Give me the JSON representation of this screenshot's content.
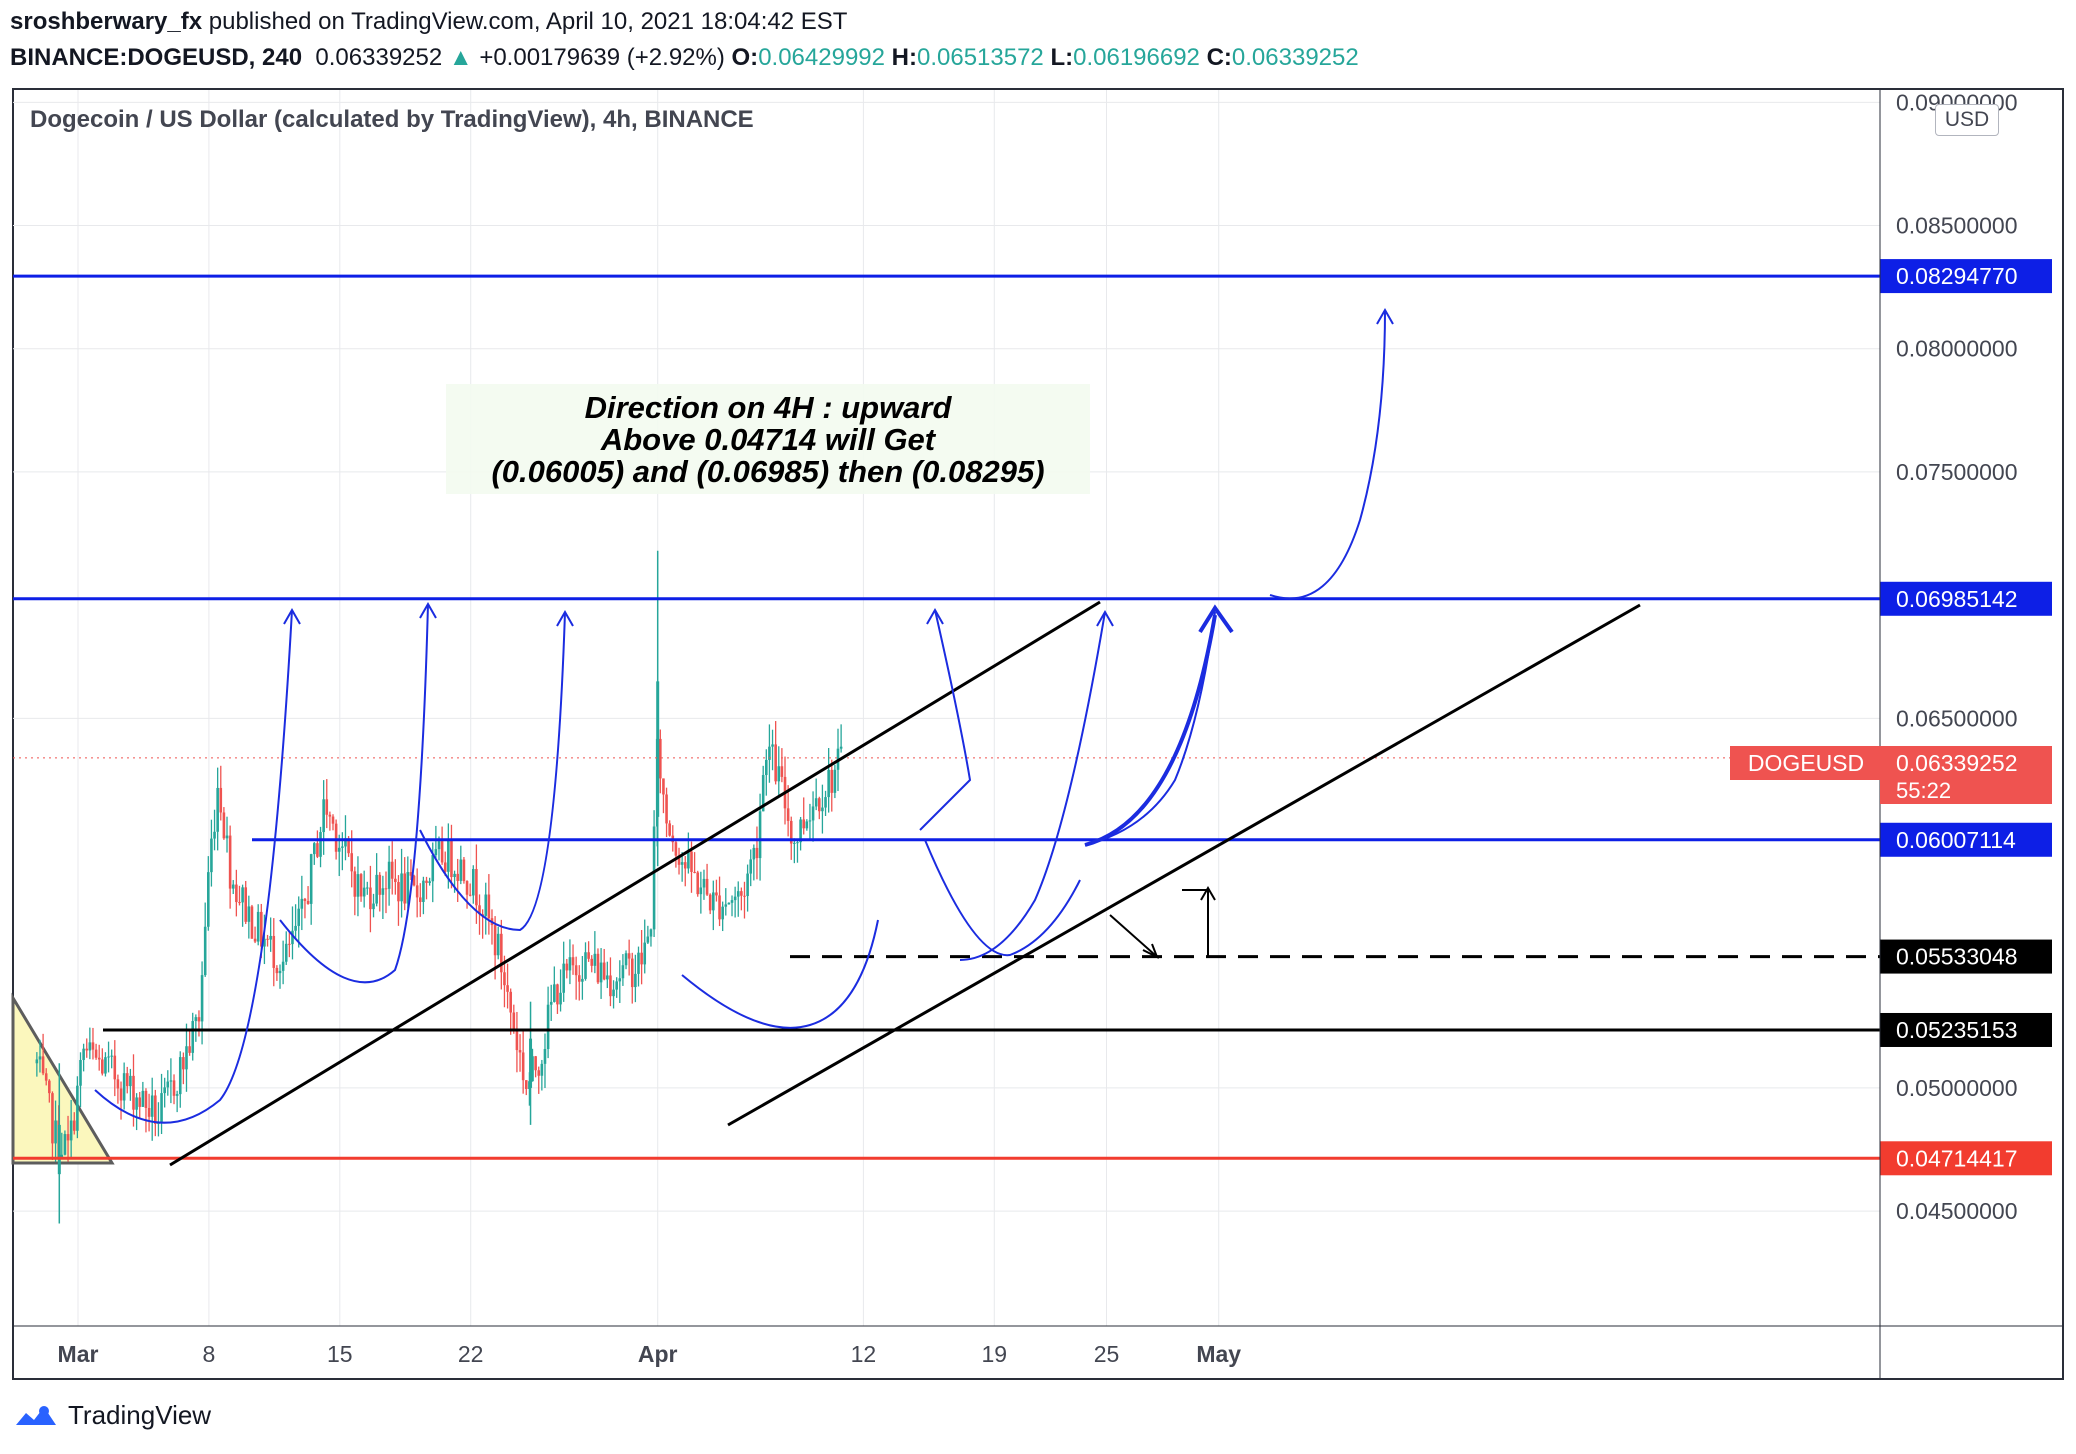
{
  "header": {
    "author": "sroshberwary_fx",
    "published": " published on TradingView.com, April 10, 2021 18:04:42 EST",
    "symbol": "BINANCE:DOGEUSD, 240",
    "price": "0.06339252",
    "change": "+0.00179639 (+2.92%)",
    "o_label": "O:",
    "o": "0.06429992",
    "h_label": "H:",
    "h": "0.06513572",
    "l_label": "L:",
    "l": "0.06196692",
    "c_label": "C:",
    "c": "0.06339252"
  },
  "legend": "Dogecoin / US Dollar (calculated by TradingView), 4h, BINANCE",
  "currency_button": "USD",
  "annotation": {
    "line1": "Direction on 4H : upward",
    "line2": "Above 0.04714 will Get",
    "line3": "(0.06005) and (0.06985) then (0.08295)"
  },
  "symbol_tag": "DOGEUSD",
  "countdown": "55:22",
  "footer_brand": "TradingView",
  "colors": {
    "up": "#26a69a",
    "down": "#ef5350",
    "level_blue": "#0d1fe6",
    "level_red": "#f23c2f",
    "last_price": "#ef5350"
  },
  "chart_data": {
    "type": "candlestick",
    "ylim": [
      0.0415,
      0.0905
    ],
    "y_ticks": [
      "0.04500000",
      "0.05000000",
      "0.06500000",
      "0.07500000",
      "0.08000000",
      "0.08500000",
      "0.09000000"
    ],
    "x_ticks": [
      {
        "label": "Mar",
        "day": 0
      },
      {
        "label": "8",
        "day": 7
      },
      {
        "label": "15",
        "day": 14
      },
      {
        "label": "22",
        "day": 21
      },
      {
        "label": "Apr",
        "day": 31
      },
      {
        "label": "12",
        "day": 42
      },
      {
        "label": "19",
        "day": 49
      },
      {
        "label": "25",
        "day": 55
      },
      {
        "label": "May",
        "day": 61
      }
    ],
    "horizontal_levels": [
      {
        "value": 0.0829477,
        "label": "0.08294770",
        "color": "#0d1fe6"
      },
      {
        "value": 0.06985142,
        "label": "0.06985142",
        "color": "#0d1fe6"
      },
      {
        "value": 0.06007114,
        "label": "0.06007114",
        "color": "#0d1fe6"
      },
      {
        "value": 0.05533048,
        "label": "0.05533048",
        "color": "#000000",
        "dashed": true
      },
      {
        "value": 0.05235153,
        "label": "0.05235153",
        "color": "#000000"
      },
      {
        "value": 0.04714417,
        "label": "0.04714417",
        "color": "#f23c2f"
      }
    ],
    "last_price": {
      "value": 0.06339252,
      "label": "0.06339252"
    },
    "price_anchors": [
      [
        -2.2,
        0.051
      ],
      [
        -1.2,
        0.048
      ],
      [
        -0.5,
        0.0475
      ],
      [
        0.3,
        0.0515
      ],
      [
        2.0,
        0.0505
      ],
      [
        3.0,
        0.0498
      ],
      [
        4.3,
        0.0488
      ],
      [
        5.5,
        0.0508
      ],
      [
        6.5,
        0.053
      ],
      [
        7.0,
        0.059
      ],
      [
        7.5,
        0.0625
      ],
      [
        8.2,
        0.0585
      ],
      [
        9.5,
        0.0565
      ],
      [
        11.0,
        0.055
      ],
      [
        12.0,
        0.057
      ],
      [
        13.2,
        0.0615
      ],
      [
        14.0,
        0.06
      ],
      [
        15.2,
        0.0578
      ],
      [
        16.5,
        0.0585
      ],
      [
        18.0,
        0.0578
      ],
      [
        19.5,
        0.0595
      ],
      [
        20.5,
        0.059
      ],
      [
        21.5,
        0.0578
      ],
      [
        22.5,
        0.0555
      ],
      [
        23.3,
        0.0525
      ],
      [
        24.0,
        0.05
      ],
      [
        24.8,
        0.0515
      ],
      [
        25.5,
        0.054
      ],
      [
        27.0,
        0.0552
      ],
      [
        28.5,
        0.0545
      ],
      [
        30.0,
        0.055
      ],
      [
        30.6,
        0.0562
      ],
      [
        31.0,
        0.064
      ],
      [
        31.4,
        0.061
      ],
      [
        32.5,
        0.059
      ],
      [
        34.0,
        0.0575
      ],
      [
        35.5,
        0.0578
      ],
      [
        36.3,
        0.06
      ],
      [
        36.8,
        0.064
      ],
      [
        37.5,
        0.0625
      ],
      [
        38.3,
        0.06
      ],
      [
        39.2,
        0.0615
      ],
      [
        40.2,
        0.0625
      ],
      [
        40.9,
        0.0634
      ]
    ]
  }
}
